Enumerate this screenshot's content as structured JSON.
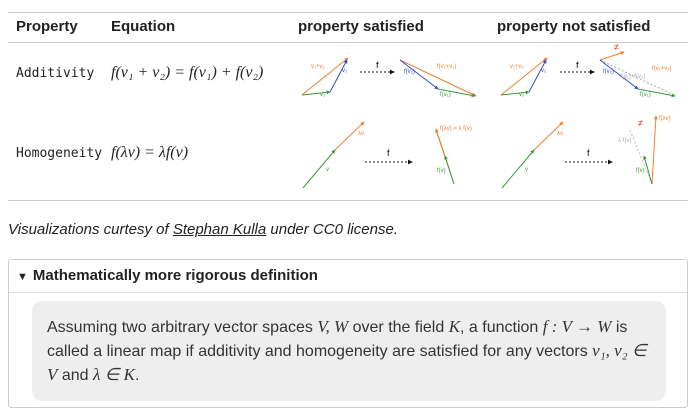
{
  "table": {
    "headers": [
      "Property",
      "Equation",
      "property satisfied",
      "property not satisfied"
    ],
    "rows": [
      {
        "property": "Additivity",
        "equation": "f(v₁ + v₂) = f(v₁) + f(v₂)"
      },
      {
        "property": "Homogeneity",
        "equation": "f(λv) = λf(v)"
      }
    ]
  },
  "diagrams": [
    {
      "labels": [
        "v₁+v₂",
        "v₂",
        "v₁",
        "f",
        "f(v₁+v₂)",
        "f(v₂)",
        "f(v₁)"
      ]
    },
    {
      "labels": [
        "v₁+v₂",
        "v₂",
        "v₁",
        "f",
        "≠",
        "f(v₁+v₂)",
        "f(v₂)",
        "f(v₁)+f(v₂)",
        "f(v₁)"
      ]
    },
    {
      "labels": [
        "λv",
        "v",
        "f",
        "f(λv) = λ f(v)",
        "f(v)"
      ]
    },
    {
      "labels": [
        "λv",
        "v",
        "f",
        "≠",
        "f(λv)",
        "λ f(v)",
        "f(v)"
      ]
    }
  ],
  "caption": {
    "before": "Visualizations curtesy of ",
    "link": "Stephan Kulla",
    "after": " under CC0 license."
  },
  "details": {
    "summary": "Mathematically more rigorous definition",
    "parts": [
      {
        "text": "Assuming two arbitrary vector spaces "
      },
      {
        "math": "V, W"
      },
      {
        "text": " over the field "
      },
      {
        "math": "K"
      },
      {
        "text": ", a function "
      },
      {
        "math": "f : V → W"
      },
      {
        "text": " is called a linear map if additivity and homogeneity are satisfied for any vectors "
      },
      {
        "math": "v₁, v₂ ∈ V"
      },
      {
        "text": " and "
      },
      {
        "math": "λ ∈ K"
      },
      {
        "text": "."
      }
    ]
  }
}
